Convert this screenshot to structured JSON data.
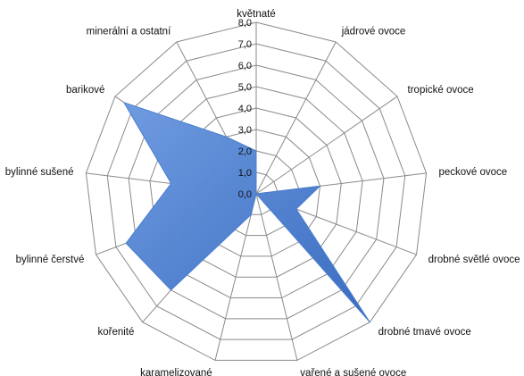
{
  "chart_data": {
    "type": "radar",
    "categories": [
      "květnaté",
      "jádrové ovoce",
      "tropické ovoce",
      "peckové ovoce",
      "drobné světlé ovoce",
      "drobné tmavé ovoce",
      "vařené a sušené ovoce",
      "karamelizované",
      "kořenité",
      "bylinné čerstvé",
      "bylinné sušené",
      "barikové",
      "minerální a ostatní"
    ],
    "values": [
      2.0,
      0.0,
      0.0,
      3.0,
      2.0,
      8.0,
      0.0,
      1.0,
      6.0,
      6.5,
      4.0,
      7.5,
      3.0
    ],
    "tick_labels": [
      "0,0",
      "1,0",
      "2,0",
      "3,0",
      "4,0",
      "5,0",
      "6,0",
      "7,0",
      "8,0"
    ],
    "rmin": 0,
    "rmax": 8,
    "tick_step": 1,
    "fill_color": "#4a7fd0",
    "grid_color": "#8a8a8a",
    "legend": "none"
  }
}
